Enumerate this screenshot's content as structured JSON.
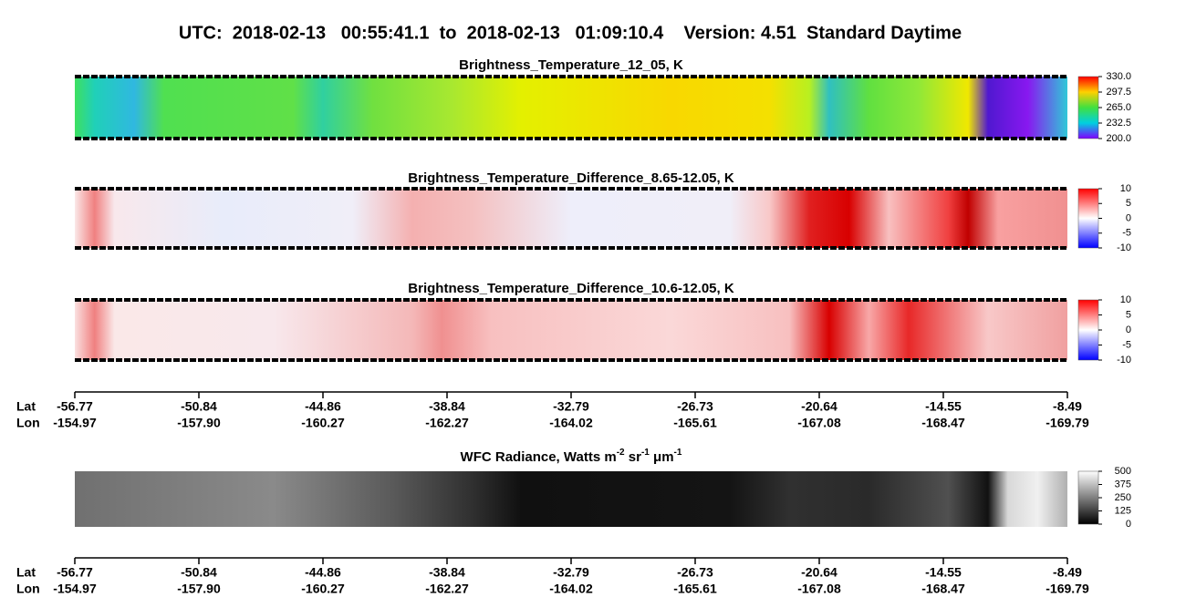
{
  "title": "UTC:  2018-02-13   00:55:41.1  to  2018-02-13   01:09:10.4    Version: 4.51  Standard Daytime",
  "panels": [
    {
      "title": "Brightness_Temperature_12_05, K",
      "colorbar_ticks": [
        "330.0",
        "297.5",
        "265.0",
        "232.5",
        "200.0"
      ]
    },
    {
      "title": "Brightness_Temperature_Difference_8.65-12.05, K",
      "colorbar_ticks": [
        "10",
        "5",
        "0",
        "-5",
        "-10"
      ]
    },
    {
      "title": "Brightness_Temperature_Difference_10.6-12.05, K",
      "colorbar_ticks": [
        "10",
        "5",
        "0",
        "-5",
        "-10"
      ]
    }
  ],
  "wfc": {
    "title_parts": [
      "WFC Radiance, Watts m",
      "-2",
      " sr",
      "-1",
      " μm",
      "-1"
    ],
    "colorbar_ticks": [
      "500",
      "375",
      "250",
      "125",
      "0"
    ]
  },
  "axes": [
    {
      "lat_label": "Lat",
      "lon_label": "Lon",
      "lat": [
        "-56.77",
        "-50.84",
        "-44.86",
        "-38.84",
        "-32.79",
        "-26.73",
        "-20.64",
        "-14.55",
        "-8.49"
      ],
      "lon": [
        "-154.97",
        "-157.90",
        "-160.27",
        "-162.27",
        "-164.02",
        "-165.61",
        "-167.08",
        "-168.47",
        "-169.79"
      ]
    },
    {
      "lat_label": "Lat",
      "lon_label": "Lon",
      "lat": [
        "-56.77",
        "-50.84",
        "-44.86",
        "-38.84",
        "-32.79",
        "-26.73",
        "-20.64",
        "-14.55",
        "-8.49"
      ],
      "lon": [
        "-154.97",
        "-157.90",
        "-160.27",
        "-162.27",
        "-164.02",
        "-165.61",
        "-167.08",
        "-168.47",
        "-169.79"
      ]
    }
  ]
}
